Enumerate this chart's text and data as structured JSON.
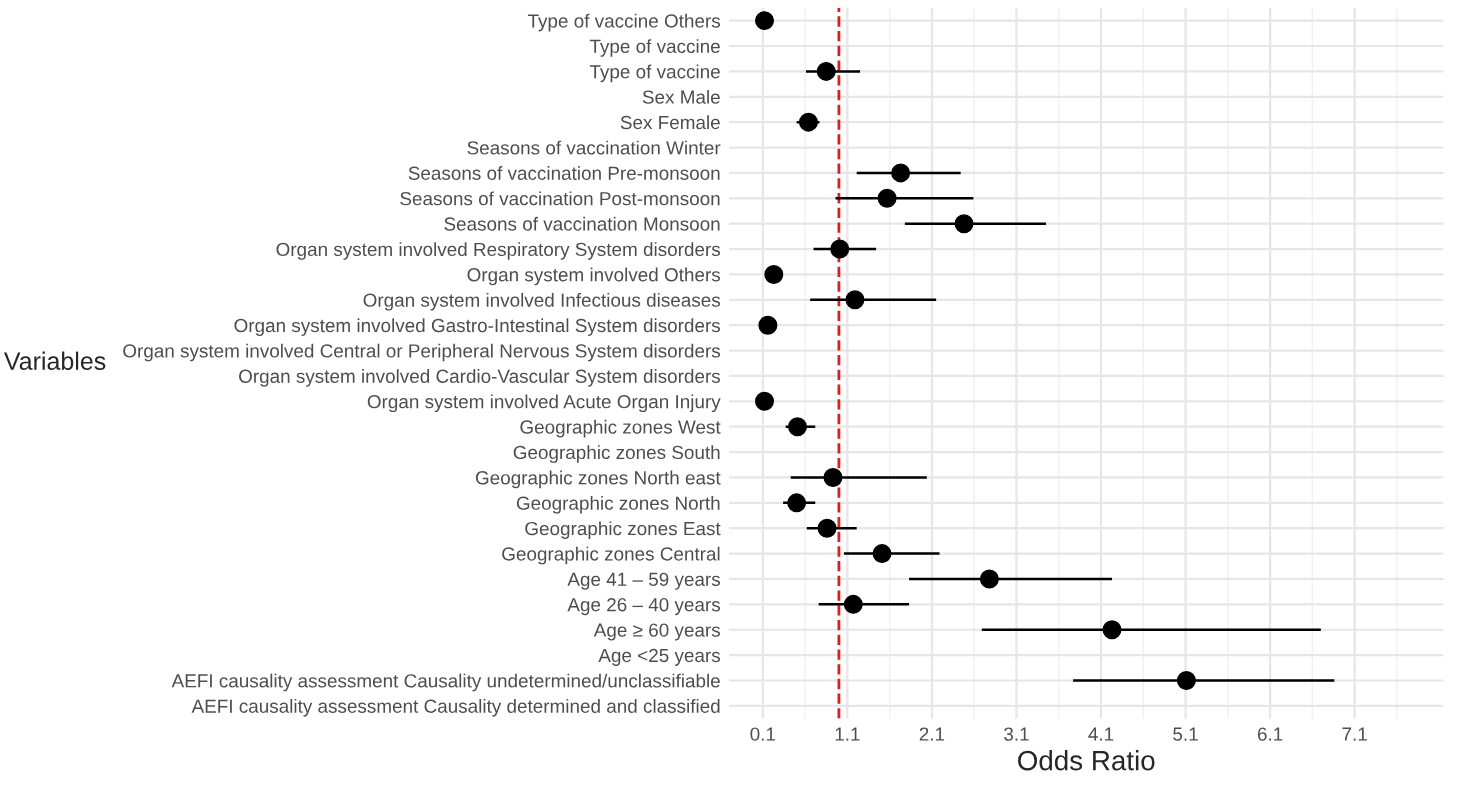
{
  "chart_data": {
    "type": "scatter",
    "orientation": "horizontal",
    "xlabel": "Odds Ratio",
    "ylabel": "Variables",
    "categories": [
      "Type of vaccine Others",
      "Type of vaccine",
      "Type of vaccine",
      "Sex Male",
      "Sex Female",
      "Seasons of vaccination Winter",
      "Seasons of vaccination Pre-monsoon",
      "Seasons of vaccination Post-monsoon",
      "Seasons of vaccination Monsoon",
      "Organ system involved Respiratory System disorders",
      "Organ system involved Others",
      "Organ system involved Infectious diseases",
      "Organ system involved Gastro-Intestinal System disorders",
      "Organ system involved Central or Peripheral Nervous System disorders",
      "Organ system involved Cardio-Vascular System disorders",
      "Organ system involved Acute Organ Injury",
      "Geographic zones West",
      "Geographic zones South",
      "Geographic zones North east",
      "Geographic zones North",
      "Geographic zones East",
      "Geographic zones Central",
      "Age 41 – 59 years",
      "Age 26 – 40 years",
      "Age ≥ 60 years",
      "Age <25 years",
      "AEFI causality assessment Causality undetermined/unclassifiable",
      "AEFI causality assessment Causality determined and classified"
    ],
    "values": [
      0.12,
      null,
      0.85,
      null,
      0.64,
      null,
      1.73,
      1.57,
      2.48,
      1.01,
      0.23,
      1.19,
      0.16,
      null,
      null,
      0.12,
      0.51,
      null,
      0.93,
      0.5,
      0.86,
      1.51,
      2.78,
      1.17,
      4.23,
      null,
      5.11,
      null
    ],
    "errors": [
      null,
      null,
      [
        0.61,
        1.25
      ],
      null,
      [
        0.5,
        0.77
      ],
      null,
      [
        1.21,
        2.44
      ],
      [
        0.96,
        2.59
      ],
      [
        1.78,
        3.45
      ],
      [
        0.7,
        1.44
      ],
      null,
      [
        0.66,
        2.15
      ],
      null,
      null,
      null,
      null,
      [
        0.37,
        0.72
      ],
      null,
      [
        0.43,
        2.04
      ],
      [
        0.34,
        0.72
      ],
      [
        0.62,
        1.21
      ],
      [
        1.06,
        2.19
      ],
      [
        1.83,
        4.23
      ],
      [
        0.76,
        1.83
      ],
      [
        2.69,
        6.7
      ],
      null,
      [
        3.77,
        6.86
      ],
      null
    ],
    "color": "#000000",
    "marker": "circle",
    "xlim": [
      -0.3,
      8.15
    ],
    "xticks": [
      0.1,
      1.1,
      2.1,
      3.1,
      4.1,
      5.1,
      6.1,
      7.1
    ],
    "ref_lines": [
      {
        "axis": "x",
        "value": 1,
        "color": "#e41a1c",
        "line_style": "dashed"
      }
    ],
    "grid": true
  }
}
